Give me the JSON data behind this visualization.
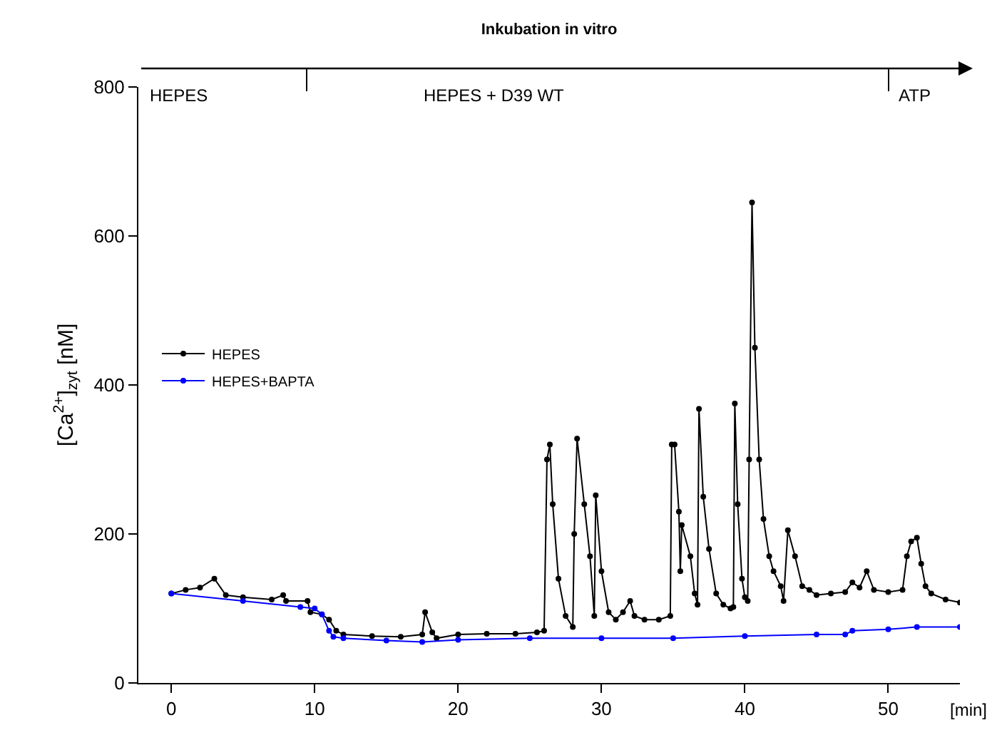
{
  "chart_data": {
    "type": "line",
    "title": "Inkubation in vitro",
    "xlabel": "[min]",
    "ylabel": "[Ca$^{2+}$]$_{zyt}$ [nM]",
    "annotations": [
      "HEPES",
      "HEPES + D39 WT",
      "ATP"
    ],
    "xlim": [
      -2.3,
      55
    ],
    "xticks": [
      0,
      10,
      20,
      30,
      40,
      50
    ],
    "ylim": [
      0,
      800
    ],
    "yticks": [
      0,
      200,
      400,
      600,
      800
    ],
    "grid": false,
    "legend": "left",
    "marker": "circle",
    "line_style": "solid",
    "series": [
      {
        "name": "HEPES",
        "color": "#000000",
        "x": [
          0,
          1,
          2,
          3,
          3.8,
          5,
          7,
          7.8,
          8,
          9.5,
          9.7,
          10.5,
          11,
          11.5,
          12,
          14,
          16,
          17.5,
          17.7,
          18.2,
          18.5,
          20,
          22,
          24,
          25.5,
          26,
          26.2,
          26.4,
          26.6,
          27,
          27.5,
          28,
          28.1,
          28.3,
          28.8,
          29.2,
          29.5,
          29.6,
          30,
          30.5,
          31,
          31.5,
          32,
          32.3,
          33,
          34,
          34.8,
          34.9,
          35.1,
          35.4,
          35.5,
          35.6,
          36.2,
          36.5,
          36.7,
          36.8,
          37.1,
          37.5,
          38,
          38.5,
          39,
          39.2,
          39.3,
          39.5,
          39.8,
          40,
          40.2,
          40.3,
          40.5,
          40.7,
          41,
          41.3,
          41.7,
          42,
          42.5,
          42.7,
          43,
          43.5,
          44,
          44.5,
          45,
          46,
          47,
          47.5,
          48,
          48.5,
          49,
          50,
          51,
          51.3,
          51.6,
          52,
          52.3,
          52.6,
          53,
          54,
          55
        ],
        "values": [
          120,
          125,
          128,
          140,
          118,
          115,
          112,
          118,
          110,
          110,
          95,
          92,
          85,
          70,
          65,
          63,
          62,
          65,
          95,
          68,
          60,
          65,
          66,
          66,
          68,
          70,
          300,
          320,
          240,
          140,
          90,
          75,
          200,
          328,
          240,
          170,
          90,
          252,
          150,
          95,
          85,
          95,
          110,
          90,
          85,
          85,
          90,
          320,
          320,
          230,
          150,
          212,
          170,
          120,
          105,
          368,
          250,
          180,
          120,
          105,
          100,
          102,
          375,
          240,
          140,
          115,
          110,
          300,
          645,
          450,
          300,
          220,
          170,
          150,
          130,
          110,
          205,
          170,
          130,
          125,
          118,
          120,
          122,
          135,
          128,
          150,
          125,
          122,
          125,
          170,
          190,
          195,
          160,
          130,
          120,
          112,
          108
        ]
      },
      {
        "name": "HEPES+BAPTA",
        "color": "#0000ff",
        "x": [
          0,
          5,
          9,
          10,
          10.5,
          11,
          11.3,
          12,
          15,
          17.5,
          20,
          25,
          30,
          35,
          40,
          45,
          47,
          47.5,
          50,
          52,
          55
        ],
        "values": [
          120,
          110,
          102,
          100,
          92,
          70,
          62,
          60,
          57,
          55,
          58,
          60,
          60,
          60,
          63,
          65,
          65,
          70,
          72,
          75,
          75
        ]
      }
    ]
  }
}
